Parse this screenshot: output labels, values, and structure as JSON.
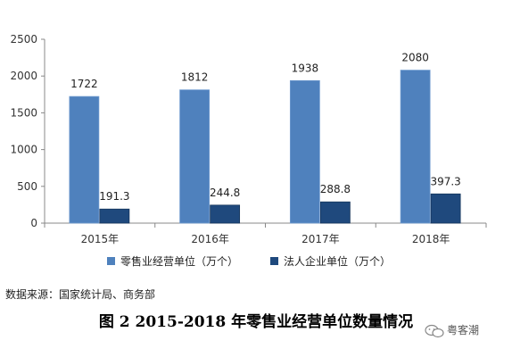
{
  "chart_data": {
    "type": "bar",
    "categories": [
      "2015年",
      "2016年",
      "2017年",
      "2018年"
    ],
    "series": [
      {
        "name": "零售业经营单位（万个）",
        "values": [
          1722,
          1812,
          1938,
          2080
        ],
        "color": "#4f81bd"
      },
      {
        "name": "法人企业单位（万个）",
        "values": [
          191.3,
          244.8,
          288.8,
          397.3
        ],
        "color": "#1f497d"
      }
    ],
    "y_ticks": [
      "0",
      "500",
      "1000",
      "1500",
      "2000",
      "2500"
    ],
    "ylim": [
      0,
      2500
    ],
    "legend_position": "bottom",
    "grid": false
  },
  "source_note": "数据来源：国家统计局、商务部",
  "caption": "图 2 2015-2018 年零售业经营单位数量情况",
  "watermark": {
    "text": "粤客潮",
    "icon": "wechat-icon"
  }
}
